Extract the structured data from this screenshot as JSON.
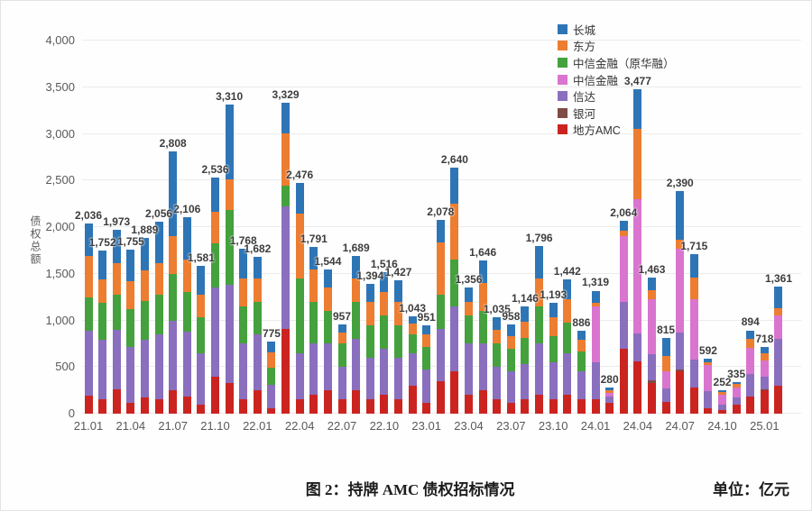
{
  "chart_data": {
    "type": "bar",
    "subtype": "stacked-monthly",
    "title": "图 2：持牌 AMC 债权招标情况",
    "unit": "单位：亿元",
    "ylabel": "债权总额",
    "ylim": [
      0,
      4000
    ],
    "grid": true,
    "legend_position": "top-right",
    "y_ticks": {
      "values": [
        0,
        500,
        1000,
        1500,
        2000,
        2500,
        3000,
        3500,
        4000
      ],
      "labels": [
        "0",
        "500",
        "1,000",
        "1,500",
        "2,000",
        "2,500",
        "3,000",
        "3,500",
        "4,000"
      ]
    },
    "x_tick_every": 3,
    "categories": [
      "21.01",
      "21.02",
      "21.03",
      "21.04",
      "21.05",
      "21.06",
      "21.07",
      "21.08",
      "21.09",
      "21.10",
      "21.11",
      "21.12",
      "22.01",
      "22.02",
      "22.03",
      "22.04",
      "22.05",
      "22.06",
      "22.07",
      "22.08",
      "22.09",
      "22.10",
      "22.11",
      "22.12",
      "23.01",
      "23.02",
      "23.03",
      "23.04",
      "23.05",
      "23.06",
      "23.07",
      "23.08",
      "23.09",
      "23.10",
      "23.11",
      "23.12",
      "24.01",
      "24.02",
      "24.03",
      "24.04",
      "24.05",
      "24.06",
      "24.07",
      "24.08",
      "24.09",
      "24.10",
      "24.11",
      "24.12",
      "25.01",
      "25.02"
    ],
    "totals": [
      2036,
      1752,
      1973,
      1755,
      1889,
      2056,
      2808,
      2106,
      1581,
      2536,
      3310,
      1768,
      1682,
      775,
      3329,
      2476,
      1791,
      1544,
      957,
      1689,
      1394,
      1516,
      1427,
      1043,
      951,
      2078,
      2640,
      1356,
      1646,
      1035,
      958,
      1146,
      1796,
      1193,
      1442,
      886,
      1319,
      280,
      2064,
      3477,
      1463,
      815,
      2390,
      1715,
      592,
      252,
      335,
      894,
      718,
      1361
    ],
    "total_labels": [
      "2,036",
      "1,752",
      "1,973",
      "1,755",
      "1,889",
      "2,056",
      "2,808",
      "2,106",
      "1,581",
      "2,536",
      "3,310",
      "1,768",
      "1,682",
      "775",
      "3,329",
      "2,476",
      "1,791",
      "1,544",
      "957",
      "1,689",
      "1,394",
      "1,516",
      "1,427",
      "1,043",
      "951",
      "2,078",
      "2,640",
      "1,356",
      "1,646",
      "1,035",
      "958",
      "1,146",
      "1,796",
      "1,193",
      "1,442",
      "886",
      "1,319",
      "280",
      "2,064",
      "3,477",
      "1,463",
      "815",
      "2,390",
      "1,715",
      "592",
      "252",
      "335",
      "894",
      "718",
      "1,361"
    ],
    "stack_order": [
      "local_amc",
      "yinhe",
      "xinda",
      "citic_new",
      "citic_huarong",
      "dongfang",
      "changcheng"
    ],
    "series": [
      {
        "key": "changcheng",
        "name": "长城",
        "color": "#2E75B6",
        "values": [
          346,
          312,
          363,
          335,
          349,
          446,
          908,
          456,
          301,
          376,
          800,
          318,
          232,
          115,
          324,
          326,
          241,
          194,
          87,
          239,
          194,
          216,
          227,
          73,
          101,
          241,
          390,
          156,
          246,
          135,
          128,
          156,
          346,
          163,
          212,
          96,
          129,
          30,
          104,
          427,
          143,
          200,
          520,
          255,
          42,
          22,
          20,
          94,
          73,
          231
        ]
      },
      {
        "key": "dongfang",
        "name": "东方",
        "color": "#ED7D31",
        "values": [
          440,
          250,
          330,
          300,
          330,
          330,
          400,
          350,
          250,
          330,
          330,
          300,
          250,
          170,
          560,
          700,
          350,
          250,
          120,
          250,
          250,
          250,
          250,
          120,
          130,
          560,
          600,
          150,
          300,
          150,
          130,
          180,
          300,
          200,
          250,
          120,
          40,
          30,
          60,
          750,
          95,
          165,
          100,
          230,
          30,
          30,
          35,
          90,
          70,
          80
        ]
      },
      {
        "key": "citic_huarong",
        "name": "中信金融（原华融）",
        "color": "#44A13D",
        "values": [
          360,
          400,
          380,
          400,
          420,
          430,
          500,
          420,
          380,
          480,
          800,
          400,
          350,
          180,
          225,
          800,
          450,
          350,
          250,
          400,
          350,
          350,
          350,
          200,
          250,
          367,
          500,
          300,
          350,
          250,
          250,
          280,
          400,
          280,
          330,
          220,
          0,
          0,
          0,
          0,
          0,
          0,
          0,
          0,
          0,
          0,
          0,
          0,
          0,
          0
        ]
      },
      {
        "key": "citic_new",
        "name": "中信金融",
        "color": "#D975CE",
        "values": [
          0,
          0,
          0,
          0,
          0,
          0,
          0,
          0,
          0,
          0,
          0,
          0,
          0,
          0,
          0,
          0,
          0,
          0,
          0,
          0,
          0,
          0,
          0,
          0,
          0,
          0,
          0,
          0,
          0,
          0,
          0,
          0,
          0,
          0,
          0,
          0,
          600,
          40,
          700,
          1440,
          590,
          175,
          900,
          650,
          280,
          100,
          110,
          280,
          180,
          250
        ]
      },
      {
        "key": "xinda",
        "name": "信达",
        "color": "#8A6FBE",
        "values": [
          700,
          640,
          640,
          600,
          620,
          700,
          750,
          700,
          550,
          950,
          1050,
          600,
          600,
          250,
          1310,
          500,
          550,
          500,
          350,
          550,
          450,
          500,
          450,
          350,
          350,
          560,
          700,
          550,
          500,
          350,
          330,
          380,
          550,
          400,
          450,
          300,
          400,
          60,
          500,
          300,
          280,
          150,
          400,
          300,
          180,
          60,
          70,
          250,
          130,
          500
        ]
      },
      {
        "key": "yinhe",
        "name": "银河",
        "color": "#7E4B45",
        "values": [
          0,
          0,
          0,
          0,
          0,
          0,
          0,
          0,
          0,
          0,
          0,
          0,
          0,
          0,
          0,
          0,
          0,
          0,
          0,
          0,
          0,
          0,
          0,
          0,
          0,
          0,
          0,
          0,
          0,
          0,
          0,
          0,
          0,
          0,
          0,
          0,
          0,
          0,
          0,
          0,
          25,
          0,
          20,
          0,
          0,
          0,
          0,
          0,
          15,
          0
        ]
      },
      {
        "key": "local_amc",
        "name": "地方AMC",
        "color": "#CB2420",
        "values": [
          190,
          150,
          260,
          120,
          170,
          150,
          250,
          180,
          100,
          400,
          330,
          150,
          250,
          60,
          910,
          150,
          200,
          250,
          150,
          250,
          150,
          200,
          150,
          300,
          120,
          350,
          450,
          200,
          250,
          150,
          120,
          150,
          200,
          150,
          200,
          150,
          150,
          120,
          700,
          560,
          330,
          125,
          450,
          280,
          60,
          40,
          100,
          180,
          250,
          300
        ]
      }
    ]
  }
}
